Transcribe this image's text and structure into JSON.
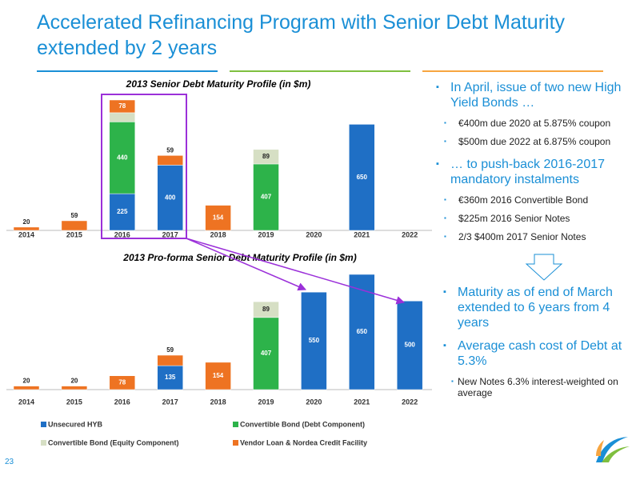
{
  "title": "Accelerated Refinancing Program with Senior Debt Maturity extended by 2 years",
  "chart_data": [
    {
      "type": "bar",
      "stacked": true,
      "title": "2013 Senior Debt Maturity Profile (in $m)",
      "categories": [
        "2014",
        "2015",
        "2016",
        "2017",
        "2018",
        "2019",
        "2020",
        "2021",
        "2022"
      ],
      "series": [
        {
          "name": "Unsecured HYB",
          "color": "#1f6fc5",
          "values": [
            null,
            null,
            225,
            400,
            null,
            null,
            null,
            650,
            null
          ]
        },
        {
          "name": "Convertible Bond (Debt Component)",
          "color": "#2db34a",
          "values": [
            null,
            null,
            440,
            null,
            null,
            407,
            null,
            null,
            null
          ]
        },
        {
          "name": "Convertible Bond (Equity Component)",
          "color": "#d6dfc4",
          "values": [
            null,
            null,
            56,
            null,
            null,
            89,
            null,
            null,
            null
          ]
        },
        {
          "name": "Vendor Loan & Nordea Credit Facility",
          "color": "#ee7322",
          "values": [
            20,
            59,
            78,
            59,
            154,
            null,
            null,
            null,
            null
          ]
        }
      ]
    },
    {
      "type": "bar",
      "stacked": true,
      "title": "2013 Pro-forma Senior Debt  Maturity Profile (in $m)",
      "categories": [
        "2014",
        "2015",
        "2016",
        "2017",
        "2018",
        "2019",
        "2020",
        "2021",
        "2022"
      ],
      "series": [
        {
          "color": "#1f6fc5",
          "values": [
            null,
            null,
            null,
            135,
            null,
            null,
            550,
            650,
            500
          ]
        },
        {
          "color": "#2db34a",
          "values": [
            null,
            null,
            null,
            null,
            null,
            407,
            null,
            null,
            null
          ]
        },
        {
          "color": "#d6dfc4",
          "values": [
            null,
            null,
            null,
            null,
            null,
            89,
            null,
            null,
            null
          ]
        },
        {
          "color": "#ee7322",
          "values": [
            20,
            20,
            78,
            59,
            154,
            null,
            null,
            null,
            null
          ]
        }
      ]
    }
  ],
  "bullets": [
    {
      "text": "In April, issue of two new High Yield Bonds …",
      "sub": [
        "€400m due 2020 at 5.875% coupon",
        "$500m due 2022 at 6.875% coupon"
      ]
    },
    {
      "text": "… to push-back 2016-2017 mandatory instalments",
      "sub": [
        "€360m 2016 Convertible Bond",
        "$225m 2016 Senior Notes",
        "2/3 $400m 2017 Senior Notes"
      ]
    },
    {
      "text": "Maturity as of end of March extended to 6 years from 4 years"
    },
    {
      "text": "Average cash cost of Debt at 5.3%",
      "sub": [
        "New Notes 6.3% interest-weighted on average"
      ]
    }
  ],
  "page_number": "23"
}
